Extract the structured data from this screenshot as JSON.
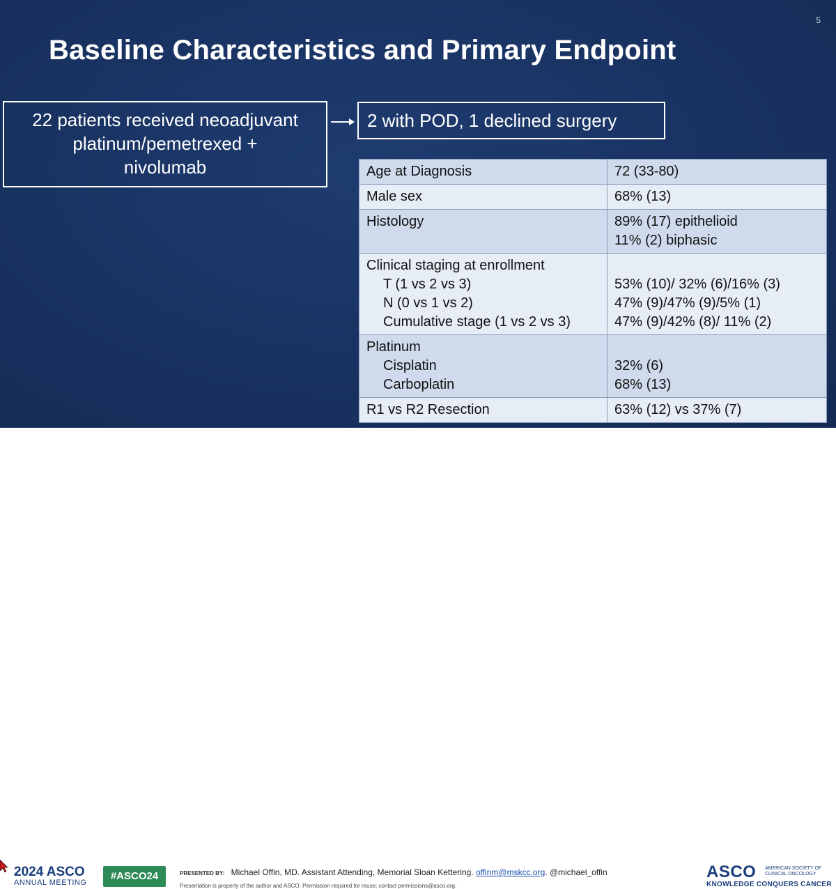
{
  "slide": {
    "page_number": "5",
    "title": "Baseline Characteristics and Primary Endpoint",
    "left_box": [
      "22 patients received neoadjuvant",
      "platinum/pemetrexed +",
      "nivolumab"
    ],
    "right_box": "2 with POD, 1 declined surgery"
  },
  "table": {
    "rows": [
      {
        "labels": [
          {
            "text": "Age at Diagnosis",
            "indent": false
          }
        ],
        "values": [
          "72 (33-80)"
        ]
      },
      {
        "labels": [
          {
            "text": "Male sex",
            "indent": false
          }
        ],
        "values": [
          "68% (13)"
        ]
      },
      {
        "labels": [
          {
            "text": "Histology",
            "indent": false
          }
        ],
        "values": [
          "89% (17) epithelioid",
          "11% (2) biphasic"
        ]
      },
      {
        "labels": [
          {
            "text": "Clinical staging at enrollment",
            "indent": false
          },
          {
            "text": "T (1 vs 2 vs 3)",
            "indent": true
          },
          {
            "text": "N (0 vs 1 vs 2)",
            "indent": true
          },
          {
            "text": "Cumulative stage (1 vs 2 vs 3)",
            "indent": true
          }
        ],
        "values": [
          "",
          "53% (10)/ 32% (6)/16% (3)",
          "47% (9)/47% (9)/5% (1)",
          "47% (9)/42% (8)/ 11% (2)"
        ]
      },
      {
        "labels": [
          {
            "text": "Platinum",
            "indent": false
          },
          {
            "text": "Cisplatin",
            "indent": true
          },
          {
            "text": "Carboplatin",
            "indent": true
          }
        ],
        "values": [
          "",
          "32% (6)",
          "68% (13)"
        ]
      },
      {
        "labels": [
          {
            "text": "R1 vs R2 Resection",
            "indent": false
          }
        ],
        "values": [
          "63% (12) vs 37% (7)"
        ]
      }
    ]
  },
  "footer": {
    "year": "2024",
    "asco": "ASCO",
    "annual_meeting": "ANNUAL MEETING",
    "hashtag": "#ASCO24",
    "presented_by_label": "PRESENTED BY:",
    "presenter": "Michael Offin, MD. Assistant Attending, Memorial Sloan Kettering.",
    "email": "offinm@mskcc.org",
    "handle": ". @michael_offin",
    "notice": "Presentation is property of the author and ASCO. Permission required for reuse; contact permissions@asco.org.",
    "society": "AMERICAN SOCIETY OF CLINICAL ONCOLOGY",
    "tagline": "KNOWLEDGE CONQUERS CANCER"
  }
}
